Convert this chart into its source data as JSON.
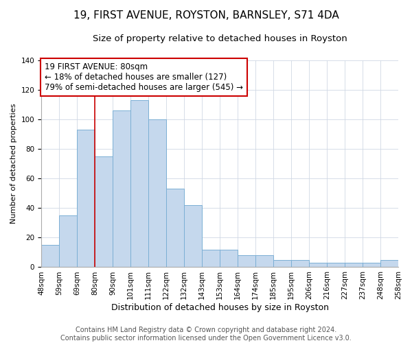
{
  "title": "19, FIRST AVENUE, ROYSTON, BARNSLEY, S71 4DA",
  "subtitle": "Size of property relative to detached houses in Royston",
  "xlabel": "Distribution of detached houses by size in Royston",
  "ylabel": "Number of detached properties",
  "bar_labels": [
    "48sqm",
    "59sqm",
    "69sqm",
    "80sqm",
    "90sqm",
    "101sqm",
    "111sqm",
    "122sqm",
    "132sqm",
    "143sqm",
    "153sqm",
    "164sqm",
    "174sqm",
    "185sqm",
    "195sqm",
    "206sqm",
    "216sqm",
    "227sqm",
    "237sqm",
    "248sqm",
    "258sqm"
  ],
  "bar_values": [
    15,
    35,
    93,
    75,
    106,
    113,
    100,
    53,
    42,
    12,
    12,
    8,
    8,
    5,
    5,
    3,
    3,
    3,
    3,
    5
  ],
  "bar_color": "#c5d8ed",
  "bar_edge_color": "#7bafd4",
  "vline_color": "#cc0000",
  "vline_at_label": "80sqm",
  "annotation_title": "19 FIRST AVENUE: 80sqm",
  "annotation_line1": "← 18% of detached houses are smaller (127)",
  "annotation_line2": "79% of semi-detached houses are larger (545) →",
  "annotation_box_color": "#ffffff",
  "annotation_box_edge_color": "#cc0000",
  "ylim": [
    0,
    140
  ],
  "yticks": [
    0,
    20,
    40,
    60,
    80,
    100,
    120,
    140
  ],
  "footer1": "Contains HM Land Registry data © Crown copyright and database right 2024.",
  "footer2": "Contains public sector information licensed under the Open Government Licence v3.0.",
  "title_fontsize": 11,
  "subtitle_fontsize": 9.5,
  "xlabel_fontsize": 9,
  "ylabel_fontsize": 8,
  "tick_fontsize": 7.5,
  "footer_fontsize": 7,
  "annotation_fontsize": 8.5,
  "grid_color": "#d0d8e4"
}
